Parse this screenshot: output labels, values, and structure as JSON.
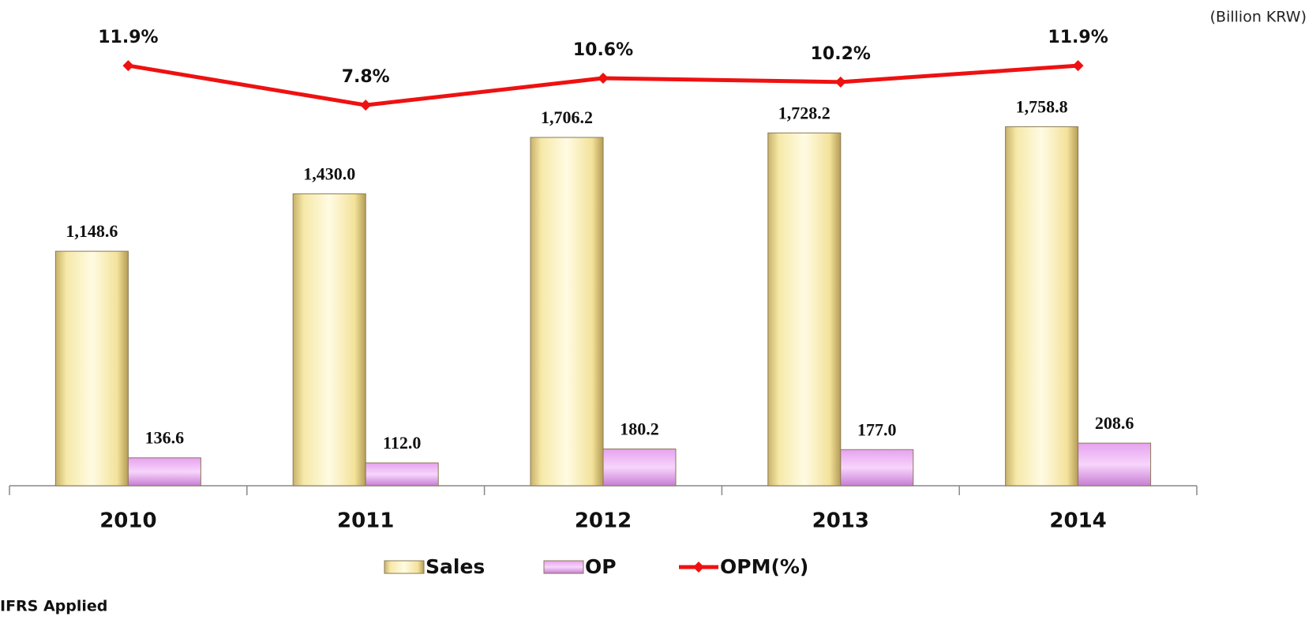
{
  "chart_data": {
    "type": "bar",
    "annotations": [
      "(Billion KRW)",
      "IFRS Applied"
    ],
    "categories": [
      "2010",
      "2011",
      "2012",
      "2013",
      "2014"
    ],
    "series": [
      {
        "name": "Sales",
        "type": "bar",
        "color": "#e8d27a",
        "values": [
          1148.6,
          1430.0,
          1706.2,
          1728.2,
          1758.8
        ],
        "value_labels": [
          "1,148.6",
          "1,430.0",
          "1,706.2",
          "1,728.2",
          "1,758.8"
        ]
      },
      {
        "name": "OP",
        "type": "bar",
        "color": "#dd99e8",
        "values": [
          136.6,
          112.0,
          180.2,
          177.0,
          208.6
        ],
        "value_labels": [
          "136.6",
          "112.0",
          "180.2",
          "177.0",
          "208.6"
        ]
      },
      {
        "name": "OPM(%)",
        "type": "line",
        "axis": "y2",
        "color": "#ee1111",
        "values": [
          11.9,
          7.8,
          10.6,
          10.2,
          11.9
        ],
        "value_labels": [
          "11.9%",
          "7.8%",
          "10.6%",
          "10.2%",
          "11.9%"
        ]
      }
    ],
    "ylim": [
      0,
      2360
    ],
    "y2lim": [
      -31.7,
      18.3
    ],
    "legend": "bottom"
  }
}
